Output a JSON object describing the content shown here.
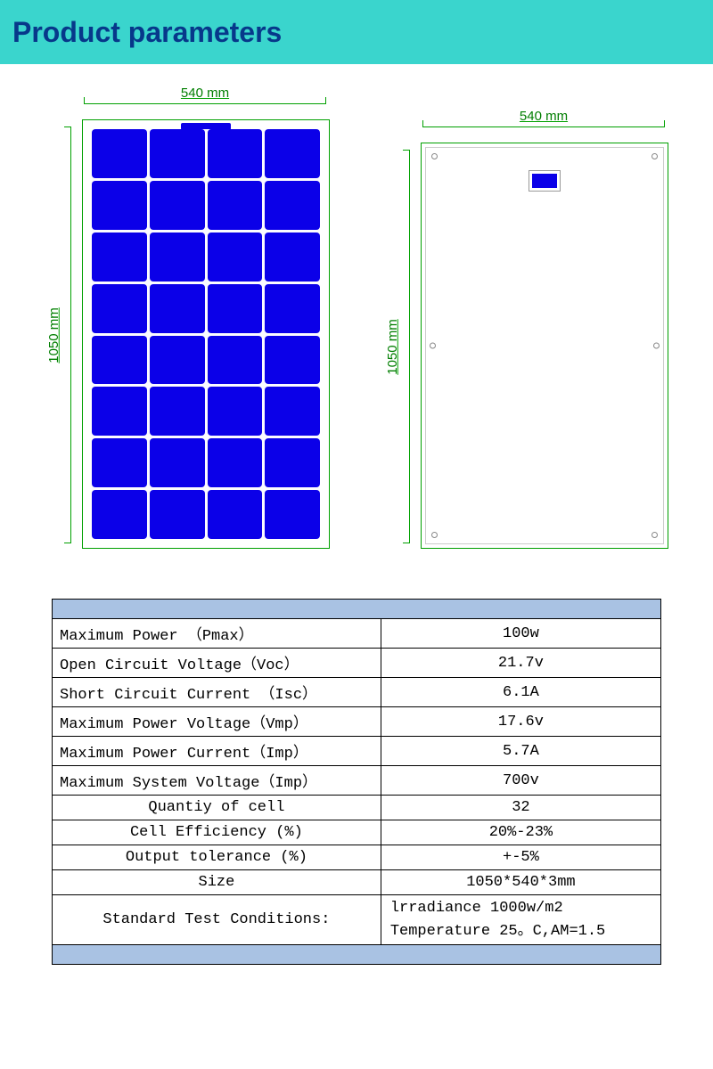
{
  "header": {
    "title": "Product parameters"
  },
  "colors": {
    "band": "#3ad5cd",
    "title": "#07388a",
    "dim_line": "#00a000",
    "dim_text": "#007e00",
    "cell": "#0b00e8",
    "table_header": "#a9c2e3",
    "table_border": "#000000"
  },
  "diagrams": {
    "front": {
      "width_label": "540 mm",
      "height_label": "1050 mm",
      "cols": 4,
      "rows": 8
    },
    "back": {
      "width_label": "540 mm",
      "height_label": "1050 mm"
    }
  },
  "table": {
    "rows": [
      {
        "label": "Maximum Power （Pmax）",
        "value": "100w",
        "label_align": "left",
        "value_align": "center"
      },
      {
        "label": "Open Circuit Voltage（Voc）",
        "value": "21.7v",
        "label_align": "left",
        "value_align": "center"
      },
      {
        "label": "Short Circuit Current （Isc）",
        "value": "6.1A",
        "label_align": "left",
        "value_align": "center"
      },
      {
        "label": "Maximum Power Voltage（Vmp）",
        "value": "17.6v",
        "label_align": "left",
        "value_align": "center"
      },
      {
        "label": "Maximum Power Current（Imp）",
        "value": "5.7A",
        "label_align": "left",
        "value_align": "center"
      },
      {
        "label": "Maximum System Voltage（Imp）",
        "value": "700v",
        "label_align": "left",
        "value_align": "center"
      },
      {
        "label": "Quantiy of cell",
        "value": "32",
        "label_align": "center",
        "value_align": "center"
      },
      {
        "label": "Cell Efficiency (%)",
        "value": "20%-23%",
        "label_align": "center",
        "value_align": "center"
      },
      {
        "label": "Output tolerance (%)",
        "value": "+-5%",
        "label_align": "center",
        "value_align": "center"
      },
      {
        "label": "Size",
        "value": "1050*540*3mm",
        "label_align": "center",
        "value_align": "center"
      }
    ],
    "conditions": {
      "label": "Standard Test Conditions:",
      "value_line1": "lrradiance 1000w/m2",
      "value_line2": "Temperature 25。C,AM=1.5"
    }
  }
}
